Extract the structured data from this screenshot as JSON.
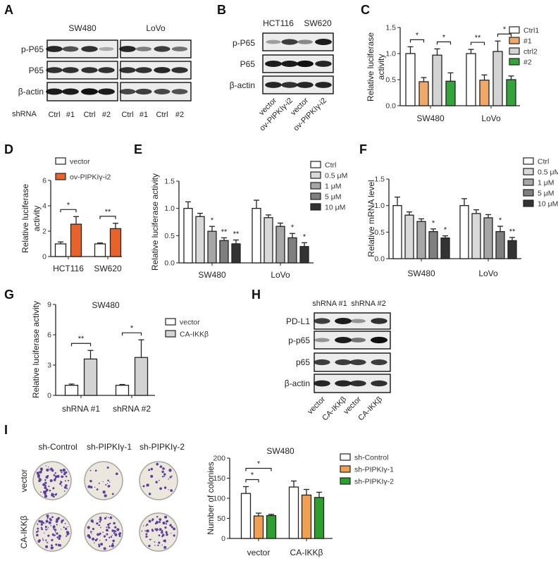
{
  "panel_a": {
    "label": "A",
    "cell_lines": [
      "SW480",
      "LoVo"
    ],
    "rows": [
      "p-P65",
      "P65",
      "β-actin"
    ],
    "lane_header": "shRNA",
    "lanes": [
      "Ctrl",
      "#1",
      "Ctrl",
      "#2",
      "Ctrl",
      "#1",
      "Ctrl",
      "#2"
    ]
  },
  "panel_b": {
    "label": "B",
    "cell_lines": [
      "HCT116",
      "SW620"
    ],
    "rows": [
      "p-P65",
      "P65",
      "β-actin"
    ],
    "lanes": [
      "vector",
      "ov-PIPKIγ-i2",
      "vector",
      "ov-PIPKIγ-i2"
    ]
  },
  "panel_h": {
    "label": "H",
    "groups": [
      "shRNA #1",
      "shRNA #2"
    ],
    "rows": [
      "PD-L1",
      "p-p65",
      "p65",
      "β-actin"
    ],
    "lanes": [
      "vector",
      "CA-IKKβ",
      "vector",
      "CA-IKKβ"
    ]
  },
  "panel_i": {
    "label": "I",
    "columns": [
      "sh-Control",
      "sh-PIPKIγ-1",
      "sh-PIPKIγ-2"
    ],
    "rows": [
      "vector",
      "CA-IKKβ"
    ],
    "colony_color": "#5b3fa0"
  },
  "chart_data": [
    {
      "panel": "C",
      "type": "bar",
      "title": "",
      "ylabel": [
        "Relative luciferase",
        "activity"
      ],
      "ylim": [
        0,
        1.5
      ],
      "yticks": [
        "0.0",
        "0.5",
        "1.0",
        "1.5"
      ],
      "categories": [
        "SW480",
        "LoVo"
      ],
      "series": [
        {
          "name": "Ctrl1",
          "color": "#ffffff",
          "values": [
            1.0,
            1.0
          ],
          "errors": [
            0.13,
            0.08
          ]
        },
        {
          "name": "#1",
          "color": "#f0a868",
          "values": [
            0.46,
            0.49
          ],
          "errors": [
            0.08,
            0.1
          ]
        },
        {
          "name": "ctrl2",
          "color": "#d3d3d3",
          "values": [
            0.97,
            1.04
          ],
          "errors": [
            0.12,
            0.2
          ]
        },
        {
          "name": "#2",
          "color": "#33a33a",
          "values": [
            0.47,
            0.5
          ],
          "errors": [
            0.16,
            0.07
          ]
        }
      ],
      "significance": [
        {
          "group": 0,
          "from": 0,
          "to": 1,
          "label": "*"
        },
        {
          "group": 0,
          "from": 2,
          "to": 3,
          "label": "*"
        },
        {
          "group": 1,
          "from": 0,
          "to": 1,
          "label": "**"
        },
        {
          "group": 1,
          "from": 2,
          "to": 3,
          "label": "*"
        }
      ]
    },
    {
      "panel": "D",
      "type": "bar",
      "title": "",
      "ylabel": [
        "Relative luciferase",
        "activity"
      ],
      "ylim": [
        0,
        6
      ],
      "yticks": [
        "0",
        "2",
        "4",
        "6"
      ],
      "categories": [
        "HCT116",
        "SW620"
      ],
      "series": [
        {
          "name": "vector",
          "color": "#ffffff",
          "values": [
            1.0,
            1.0
          ],
          "errors": [
            0.15,
            0.07
          ]
        },
        {
          "name": "ov-PIPKIγ-i2",
          "color": "#e8632a",
          "values": [
            2.55,
            2.2
          ],
          "errors": [
            0.6,
            0.42
          ]
        }
      ],
      "significance": [
        {
          "group": 0,
          "from": 0,
          "to": 1,
          "label": "*"
        },
        {
          "group": 1,
          "from": 0,
          "to": 1,
          "label": "**"
        }
      ]
    },
    {
      "panel": "E",
      "type": "bar",
      "title": "",
      "ylabel": [
        "Relative luciferase activity"
      ],
      "ylim": [
        0,
        1.5
      ],
      "yticks": [
        "0.0",
        "0.5",
        "1.0",
        "1.5"
      ],
      "categories": [
        "SW480",
        "LoVo"
      ],
      "series": [
        {
          "name": "Ctrl",
          "color": "#ffffff",
          "values": [
            1.0,
            1.0
          ],
          "errors": [
            0.12,
            0.15
          ],
          "stars": [
            "",
            ""
          ]
        },
        {
          "name": "0.5 μM",
          "color": "#d9d9d9",
          "values": [
            0.85,
            0.83
          ],
          "errors": [
            0.06,
            0.05
          ],
          "stars": [
            "",
            ""
          ]
        },
        {
          "name": "1 μM",
          "color": "#a6a6a6",
          "values": [
            0.58,
            0.67
          ],
          "errors": [
            0.09,
            0.06
          ],
          "stars": [
            "*",
            ""
          ]
        },
        {
          "name": "5 μM",
          "color": "#7f7f7f",
          "values": [
            0.41,
            0.46
          ],
          "errors": [
            0.05,
            0.08
          ],
          "stars": [
            "**",
            "*"
          ]
        },
        {
          "name": "10 μM",
          "color": "#333333",
          "values": [
            0.35,
            0.3
          ],
          "errors": [
            0.07,
            0.07
          ],
          "stars": [
            "**",
            "*"
          ]
        }
      ]
    },
    {
      "panel": "F",
      "type": "bar",
      "title": "",
      "ylabel": [
        "Relative mRNA level"
      ],
      "ylim": [
        0,
        1.5
      ],
      "yticks": [
        "0.0",
        "0.5",
        "1.0",
        "1.5"
      ],
      "categories": [
        "SW480",
        "LoVo"
      ],
      "series": [
        {
          "name": "Ctrl",
          "color": "#ffffff",
          "values": [
            1.0,
            1.0
          ],
          "errors": [
            0.16,
            0.13
          ],
          "stars": [
            "",
            ""
          ]
        },
        {
          "name": "0.5 μM",
          "color": "#d9d9d9",
          "values": [
            0.82,
            0.85
          ],
          "errors": [
            0.06,
            0.07
          ],
          "stars": [
            "",
            ""
          ]
        },
        {
          "name": "1 μM",
          "color": "#a6a6a6",
          "values": [
            0.7,
            0.77
          ],
          "errors": [
            0.05,
            0.06
          ],
          "stars": [
            "",
            ""
          ]
        },
        {
          "name": "5 μM",
          "color": "#7f7f7f",
          "values": [
            0.51,
            0.51
          ],
          "errors": [
            0.05,
            0.1
          ],
          "stars": [
            "*",
            "*"
          ]
        },
        {
          "name": "10 μM",
          "color": "#333333",
          "values": [
            0.39,
            0.34
          ],
          "errors": [
            0.04,
            0.06
          ],
          "stars": [
            "*",
            "**"
          ]
        }
      ]
    },
    {
      "panel": "G",
      "type": "bar",
      "title": "SW480",
      "ylabel": [
        "Relative luciferase activity"
      ],
      "ylim": [
        0,
        9
      ],
      "yticks": [
        "0",
        "3",
        "6",
        "9"
      ],
      "categories": [
        "shRNA #1",
        "shRNA #2"
      ],
      "series": [
        {
          "name": "vector",
          "color": "#ffffff",
          "values": [
            1.0,
            1.0
          ],
          "errors": [
            0.12,
            0.08
          ]
        },
        {
          "name": "CA-IKKβ",
          "color": "#d3d3d3",
          "values": [
            3.6,
            3.75
          ],
          "errors": [
            0.85,
            1.75
          ]
        }
      ],
      "significance": [
        {
          "group": 0,
          "from": 0,
          "to": 1,
          "label": "**"
        },
        {
          "group": 1,
          "from": 0,
          "to": 1,
          "label": "*"
        }
      ]
    },
    {
      "panel": "I",
      "type": "bar",
      "title": "SW480",
      "ylabel": [
        "Number of colonies"
      ],
      "ylim": [
        0,
        200
      ],
      "yticks": [
        "0",
        "50",
        "100",
        "150",
        "200"
      ],
      "categories": [
        "vector",
        "CA-IKKβ"
      ],
      "series": [
        {
          "name": "sh-Control",
          "color": "#ffffff",
          "values": [
            112,
            128
          ],
          "errors": [
            17,
            15
          ]
        },
        {
          "name": "sh-PIPKIγ-1",
          "color": "#f0a050",
          "values": [
            56,
            108
          ],
          "errors": [
            7,
            14
          ]
        },
        {
          "name": "sh-PIPKIγ-2",
          "color": "#2ca02c",
          "values": [
            57,
            102
          ],
          "errors": [
            3,
            13
          ]
        }
      ],
      "significance": [
        {
          "group": 0,
          "from": 0,
          "to": 1,
          "label": "*",
          "level": 0
        },
        {
          "group": 0,
          "from": 0,
          "to": 2,
          "label": "*",
          "level": 1
        }
      ]
    }
  ]
}
